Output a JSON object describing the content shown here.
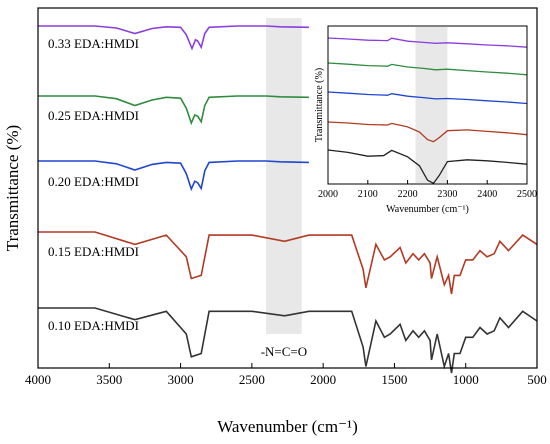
{
  "chart_data": [
    {
      "type": "line",
      "xlabel": "Wavenumber (cm⁻¹)",
      "ylabel": "Transmittance (%)",
      "xlim": [
        4000,
        500
      ],
      "x_ticks": [
        "4000",
        "3500",
        "3000",
        "2500",
        "2000",
        "1500",
        "1000",
        "500"
      ],
      "grid": false,
      "annotation": "-N=C=O",
      "highlight_band": [
        2400,
        2150
      ],
      "series": [
        {
          "name": "0.33 EDA:HMDI",
          "color": "#8a3ee0",
          "x": [
            4000,
            3600,
            3450,
            3320,
            3200,
            3100,
            3000,
            2960,
            2920,
            2895,
            2880,
            2855,
            2830,
            2800,
            2600,
            2400,
            2300,
            2100
          ],
          "y": [
            0.0,
            0.0,
            0.08,
            0.3,
            0.1,
            0.03,
            0.05,
            0.35,
            0.9,
            0.55,
            0.6,
            0.85,
            0.3,
            0.05,
            0.0,
            0.0,
            0.03,
            0.05
          ]
        },
        {
          "name": "0.25 EDA:HMDI",
          "color": "#2f8c3f",
          "x": [
            4000,
            3600,
            3450,
            3320,
            3200,
            3100,
            3000,
            2960,
            2925,
            2900,
            2880,
            2855,
            2830,
            2800,
            2600,
            2400,
            2300,
            2100
          ],
          "y": [
            0.0,
            0.0,
            0.1,
            0.35,
            0.15,
            0.05,
            0.08,
            0.45,
            1.0,
            0.7,
            0.75,
            0.95,
            0.35,
            0.05,
            0.0,
            0.0,
            0.03,
            0.05
          ]
        },
        {
          "name": "0.20 EDA:HMDI",
          "color": "#1f46d0",
          "x": [
            4000,
            3600,
            3450,
            3320,
            3200,
            3100,
            3000,
            2960,
            2925,
            2900,
            2880,
            2855,
            2830,
            2800,
            2600,
            2400,
            2300,
            2100
          ],
          "y": [
            0.0,
            0.0,
            0.1,
            0.32,
            0.12,
            0.05,
            0.08,
            0.45,
            1.0,
            0.72,
            0.78,
            0.98,
            0.35,
            0.05,
            0.0,
            0.0,
            0.03,
            0.05
          ]
        },
        {
          "name": "0.15 EDA:HMDI",
          "color": "#b23a22",
          "x": [
            4000,
            3600,
            3320,
            3100,
            2960,
            2925,
            2855,
            2800,
            2500,
            2270,
            2100,
            1800,
            1720,
            1700,
            1630,
            1570,
            1530,
            1460,
            1420,
            1370,
            1330,
            1290,
            1250,
            1240,
            1200,
            1150,
            1120,
            1100,
            1080,
            1040,
            1000,
            950,
            900,
            850,
            800,
            760,
            700,
            600,
            500
          ],
          "y": [
            0.0,
            0.0,
            0.2,
            0.05,
            0.4,
            0.75,
            0.7,
            0.05,
            0.05,
            0.15,
            0.05,
            0.05,
            0.6,
            0.9,
            0.2,
            0.45,
            0.4,
            0.25,
            0.5,
            0.35,
            0.45,
            0.35,
            0.5,
            0.75,
            0.4,
            0.85,
            0.7,
            1.0,
            0.7,
            0.7,
            0.45,
            0.45,
            0.3,
            0.4,
            0.35,
            0.15,
            0.3,
            0.05,
            0.2
          ]
        },
        {
          "name": "0.10 EDA:HMDI",
          "color": "#333333",
          "x": [
            4000,
            3600,
            3320,
            3100,
            2960,
            2925,
            2855,
            2800,
            2500,
            2270,
            2100,
            1800,
            1720,
            1700,
            1630,
            1570,
            1530,
            1460,
            1420,
            1370,
            1330,
            1290,
            1250,
            1240,
            1200,
            1150,
            1120,
            1100,
            1080,
            1040,
            1000,
            950,
            900,
            850,
            800,
            760,
            700,
            600,
            500
          ],
          "y": [
            0.0,
            0.0,
            0.18,
            0.05,
            0.4,
            0.75,
            0.7,
            0.05,
            0.05,
            0.12,
            0.05,
            0.05,
            0.6,
            0.9,
            0.2,
            0.45,
            0.4,
            0.25,
            0.5,
            0.35,
            0.45,
            0.35,
            0.5,
            0.8,
            0.4,
            0.9,
            0.7,
            1.0,
            0.7,
            0.7,
            0.45,
            0.45,
            0.3,
            0.4,
            0.35,
            0.15,
            0.3,
            0.05,
            0.2
          ]
        }
      ]
    },
    {
      "type": "line",
      "xlabel": "Wavenumber (cm⁻¹)",
      "ylabel": "Transmittance (%)",
      "xlim": [
        2000,
        2500
      ],
      "x_ticks": [
        "2000",
        "2100",
        "2200",
        "2300",
        "2400",
        "2500"
      ],
      "grid": false,
      "highlight_band": [
        2220,
        2300
      ],
      "series": [
        {
          "color": "#8a3ee0",
          "x": [
            2000,
            2050,
            2100,
            2150,
            2160,
            2200,
            2240,
            2270,
            2300,
            2350,
            2400,
            2450,
            2500
          ],
          "y": [
            0.0,
            0.02,
            0.05,
            0.02,
            -0.2,
            0.0,
            0.05,
            0.08,
            0.0,
            0.02,
            0.05,
            0.05,
            0.1
          ]
        },
        {
          "color": "#2f8c3f",
          "x": [
            2000,
            2050,
            2100,
            2150,
            2160,
            2200,
            2240,
            2270,
            2300,
            2350,
            2400,
            2450,
            2500
          ],
          "y": [
            0.0,
            0.02,
            0.05,
            0.02,
            -0.15,
            0.0,
            0.05,
            0.12,
            0.02,
            0.05,
            0.08,
            0.1,
            0.15
          ]
        },
        {
          "color": "#1f46d0",
          "x": [
            2000,
            2050,
            2100,
            2150,
            2160,
            2200,
            2240,
            2270,
            2300,
            2350,
            2400,
            2450,
            2500
          ],
          "y": [
            0.0,
            0.02,
            0.05,
            0.02,
            -0.15,
            0.02,
            0.08,
            0.15,
            0.05,
            0.05,
            0.08,
            0.1,
            0.15
          ]
        },
        {
          "color": "#b23a22",
          "x": [
            2000,
            2050,
            2100,
            2150,
            2160,
            2200,
            2230,
            2250,
            2265,
            2280,
            2300,
            2350,
            2400,
            2450,
            2500
          ],
          "y": [
            0.0,
            0.0,
            0.03,
            0.0,
            -0.1,
            0.05,
            0.3,
            0.7,
            0.8,
            0.55,
            0.15,
            0.05,
            0.08,
            0.1,
            0.15
          ]
        },
        {
          "color": "#222222",
          "x": [
            2000,
            2050,
            2100,
            2140,
            2160,
            2200,
            2230,
            2250,
            2265,
            2280,
            2300,
            2350,
            2400,
            2450,
            2500
          ],
          "y": [
            0.0,
            0.05,
            0.15,
            0.1,
            -0.1,
            0.1,
            0.4,
            0.9,
            1.0,
            0.7,
            0.2,
            0.1,
            0.1,
            0.12,
            0.15
          ]
        }
      ]
    }
  ]
}
